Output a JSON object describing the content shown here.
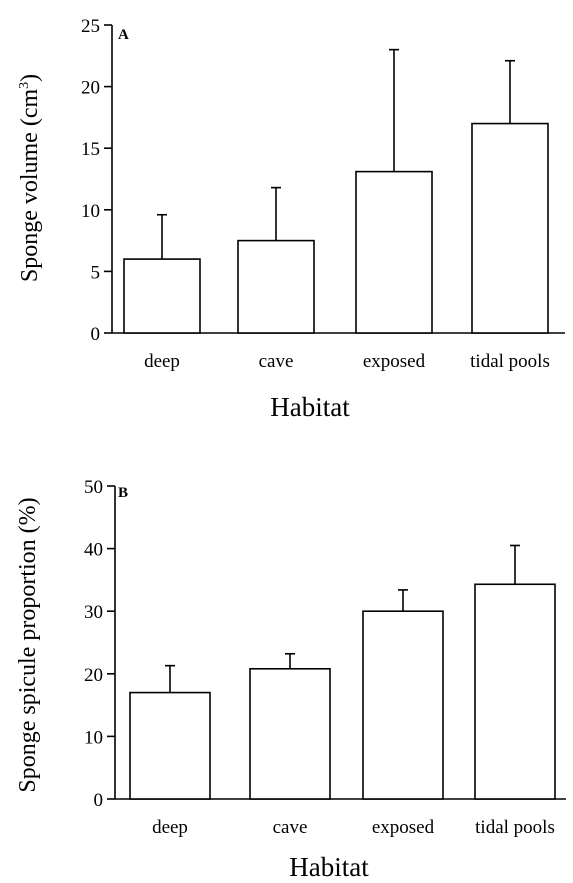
{
  "chart_data": [
    {
      "panel": "A",
      "type": "bar",
      "categories": [
        "deep",
        "cave",
        "exposed",
        "tidal pools"
      ],
      "values": [
        6.0,
        7.5,
        13.1,
        17.0
      ],
      "errors": [
        3.6,
        4.3,
        9.9,
        5.1
      ],
      "ylim": [
        0,
        25
      ],
      "yticks": [
        "0",
        "5",
        "10",
        "15",
        "20",
        "25"
      ],
      "ylabel": "Sponge volume (cm",
      "ylabel_sup": "3",
      "ylabel_close": ")",
      "xlabel": "Habitat"
    },
    {
      "panel": "B",
      "type": "bar",
      "categories": [
        "deep",
        "cave",
        "exposed",
        "tidal pools"
      ],
      "values": [
        17.0,
        20.8,
        30.0,
        34.3
      ],
      "errors": [
        4.3,
        2.4,
        3.4,
        6.2
      ],
      "ylim": [
        0,
        50
      ],
      "yticks": [
        "0",
        "10",
        "20",
        "30",
        "40",
        "50"
      ],
      "ylabel": "Sponge spicule proportion (%)",
      "xlabel": "Habitat"
    }
  ]
}
